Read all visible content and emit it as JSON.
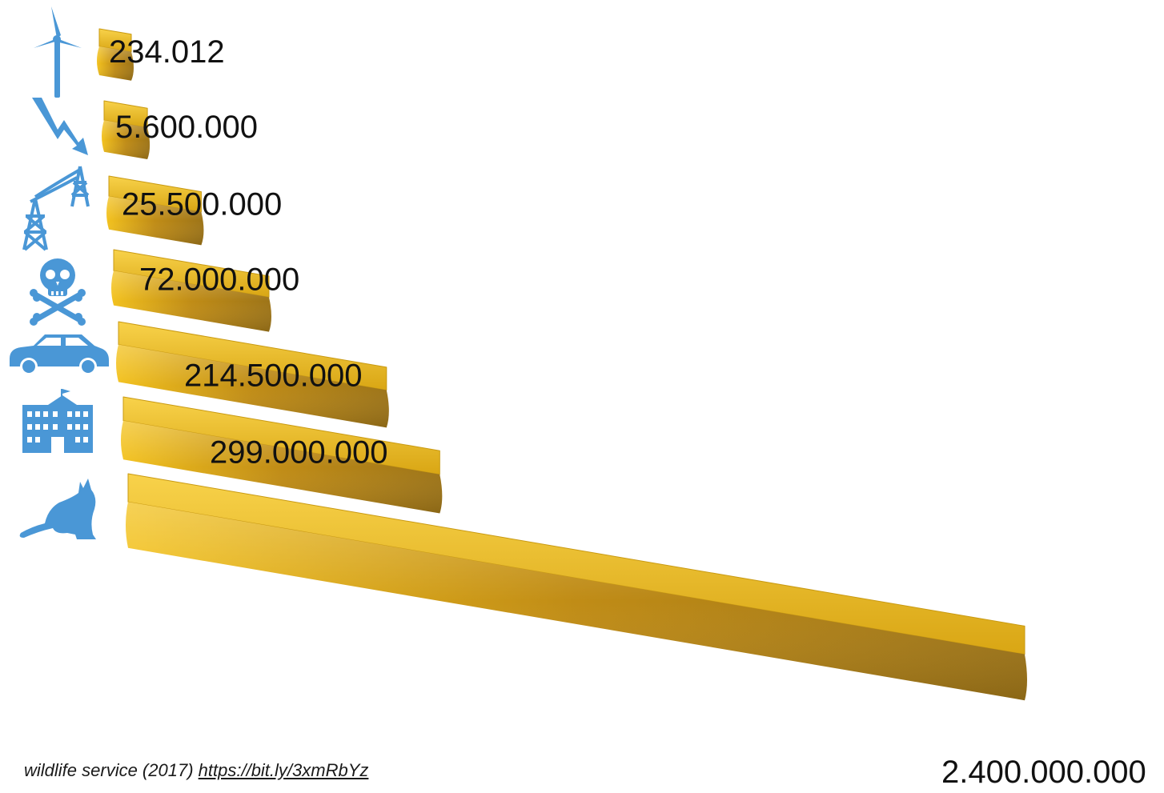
{
  "chart_data": {
    "type": "bar",
    "orientation": "horizontal",
    "categories": [
      "wind-turbine",
      "lightning",
      "power-lines",
      "poison",
      "car",
      "building",
      "cat"
    ],
    "value_labels": [
      "234.012",
      "5.600.000",
      "25.500.000",
      "72.000.000",
      "214.500.000",
      "299.000.000",
      "2.400.000.000"
    ],
    "values": [
      234012,
      5600000,
      25500000,
      72000000,
      214500000,
      299000000,
      2400000000
    ],
    "bar_color": "#e8b318",
    "icon_color": "#4a97d6"
  },
  "source": {
    "text": "wildlife service (2017)",
    "link": "https://bit.ly/3xmRbYz"
  }
}
